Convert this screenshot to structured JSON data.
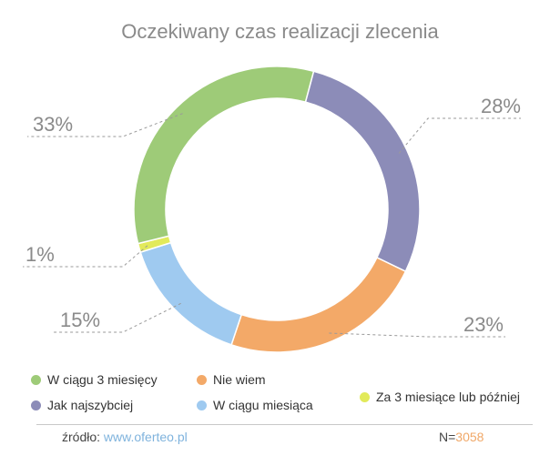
{
  "chart_data": {
    "type": "pie",
    "title": "Oczekiwany czas realizacji zlecenia",
    "slices": [
      {
        "name": "Jak najszybciej",
        "value": 28,
        "label": "28%",
        "color": "#8c8cb8",
        "label_side": "right"
      },
      {
        "name": "Nie wiem",
        "value": 23,
        "label": "23%",
        "color": "#f3a968",
        "label_side": "right"
      },
      {
        "name": "W ciągu miesiąca",
        "value": 15,
        "label": "15%",
        "color": "#9fcaf0",
        "label_side": "left"
      },
      {
        "name": "Za 3 miesiące lub później",
        "value": 1,
        "label": "1%",
        "color": "#e2ea5a",
        "label_side": "left"
      },
      {
        "name": "W ciągu 3 miesięcy",
        "value": 33,
        "label": "33%",
        "color": "#9ecb78",
        "label_side": "left"
      }
    ],
    "legend_position": "bottom"
  },
  "legend": [
    {
      "label": "W ciągu 3 miesięcy",
      "color": "#9ecb78"
    },
    {
      "label": "Nie wiem",
      "color": "#f3a968"
    },
    {
      "label": "Jak najszybciej",
      "color": "#8c8cb8"
    },
    {
      "label": "W ciągu miesiąca",
      "color": "#9fcaf0"
    },
    {
      "label": "Za 3 miesiące lub później",
      "color": "#e2ea5a"
    }
  ],
  "footer": {
    "source_label": "źródło:",
    "source_url": "www.oferteo.pl",
    "sample_label": "N=",
    "sample_value": "3058"
  }
}
